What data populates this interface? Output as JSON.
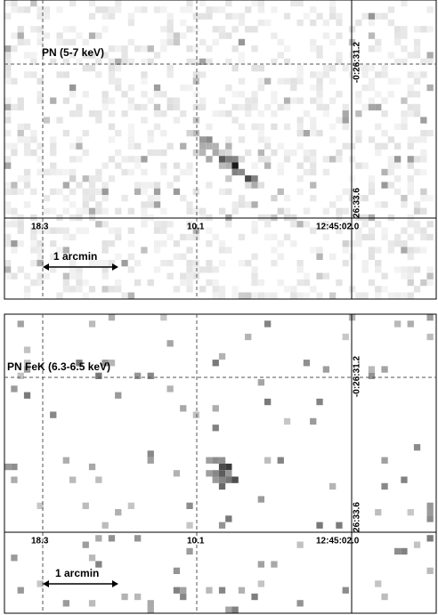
{
  "panels": [
    {
      "title": "PN (5-7 keV)",
      "x_labels": [
        "18.3",
        "10.1",
        "12:45:02.0"
      ],
      "y_labels": [
        "-0:26:31.2",
        "26:33.6"
      ],
      "scale_bar": "1 arcmin"
    },
    {
      "title": "PN FeK  (6.3-6.5 keV)",
      "x_labels": [
        "18.3",
        "10.1",
        "12:45:02.0"
      ],
      "y_labels": [
        "-0:26:31.2",
        "26:33.6"
      ],
      "scale_bar": "1 arcmin"
    }
  ]
}
